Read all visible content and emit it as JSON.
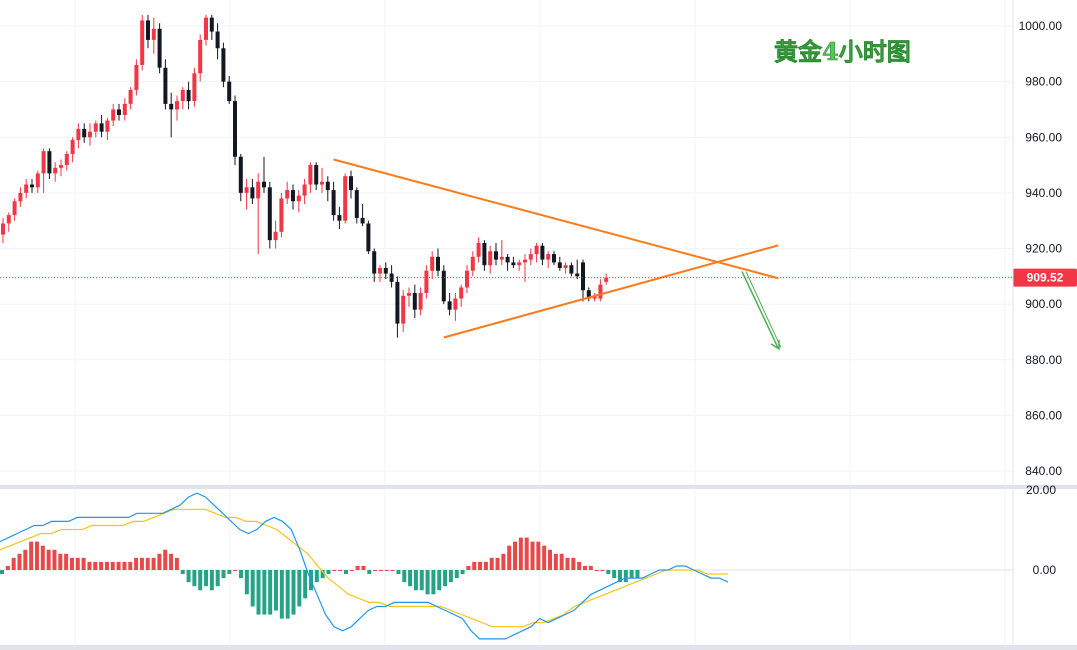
{
  "chart_data": {
    "type": "candlestick",
    "title": "黄金4小时图",
    "colors": {
      "up": "#f23645",
      "down": "#131722",
      "trendline": "#ff7a1a",
      "arrow": "#4caf50",
      "macd_pos": "#e84848",
      "macd_neg": "#26a387",
      "dif": "#2196f3",
      "dea": "#f5c518"
    },
    "price_axis": {
      "ticks": [
        "1000.00",
        "980.00",
        "960.00",
        "940.00",
        "920.00",
        "900.00",
        "880.00",
        "860.00",
        "840.00"
      ],
      "ylim": [
        835,
        1008
      ]
    },
    "current_price": "909.52",
    "macd_axis": {
      "ticks": [
        "20.00",
        "0.00"
      ]
    },
    "candles": [
      {
        "o": 925,
        "h": 931,
        "l": 922,
        "c": 929
      },
      {
        "o": 929,
        "h": 933,
        "l": 926,
        "c": 932
      },
      {
        "o": 932,
        "h": 938,
        "l": 930,
        "c": 937
      },
      {
        "o": 937,
        "h": 942,
        "l": 935,
        "c": 940
      },
      {
        "o": 940,
        "h": 945,
        "l": 938,
        "c": 943
      },
      {
        "o": 943,
        "h": 945,
        "l": 940,
        "c": 942
      },
      {
        "o": 942,
        "h": 948,
        "l": 940,
        "c": 947
      },
      {
        "o": 947,
        "h": 956,
        "l": 940,
        "c": 955
      },
      {
        "o": 955,
        "h": 956,
        "l": 945,
        "c": 947
      },
      {
        "o": 947,
        "h": 951,
        "l": 944,
        "c": 949
      },
      {
        "o": 949,
        "h": 952,
        "l": 946,
        "c": 950
      },
      {
        "o": 950,
        "h": 955,
        "l": 948,
        "c": 954
      },
      {
        "o": 954,
        "h": 960,
        "l": 951,
        "c": 959
      },
      {
        "o": 959,
        "h": 965,
        "l": 956,
        "c": 963
      },
      {
        "o": 963,
        "h": 965,
        "l": 958,
        "c": 960
      },
      {
        "o": 960,
        "h": 965,
        "l": 957,
        "c": 962
      },
      {
        "o": 962,
        "h": 966,
        "l": 960,
        "c": 965
      },
      {
        "o": 965,
        "h": 968,
        "l": 960,
        "c": 962
      },
      {
        "o": 962,
        "h": 967,
        "l": 959,
        "c": 966
      },
      {
        "o": 966,
        "h": 972,
        "l": 964,
        "c": 970
      },
      {
        "o": 970,
        "h": 972,
        "l": 966,
        "c": 968
      },
      {
        "o": 968,
        "h": 974,
        "l": 966,
        "c": 972
      },
      {
        "o": 972,
        "h": 978,
        "l": 970,
        "c": 977
      },
      {
        "o": 977,
        "h": 988,
        "l": 975,
        "c": 986
      },
      {
        "o": 986,
        "h": 1004,
        "l": 984,
        "c": 1002
      },
      {
        "o": 1002,
        "h": 1004,
        "l": 992,
        "c": 995
      },
      {
        "o": 995,
        "h": 1003,
        "l": 990,
        "c": 999
      },
      {
        "o": 999,
        "h": 1001,
        "l": 983,
        "c": 985
      },
      {
        "o": 985,
        "h": 988,
        "l": 970,
        "c": 972
      },
      {
        "o": 972,
        "h": 976,
        "l": 960,
        "c": 970
      },
      {
        "o": 970,
        "h": 975,
        "l": 966,
        "c": 973
      },
      {
        "o": 973,
        "h": 978,
        "l": 970,
        "c": 977
      },
      {
        "o": 977,
        "h": 980,
        "l": 970,
        "c": 973
      },
      {
        "o": 973,
        "h": 985,
        "l": 971,
        "c": 983
      },
      {
        "o": 983,
        "h": 997,
        "l": 980,
        "c": 995
      },
      {
        "o": 995,
        "h": 1004,
        "l": 993,
        "c": 1003
      },
      {
        "o": 1003,
        "h": 1004,
        "l": 995,
        "c": 998
      },
      {
        "o": 998,
        "h": 1001,
        "l": 988,
        "c": 992
      },
      {
        "o": 992,
        "h": 994,
        "l": 978,
        "c": 980
      },
      {
        "o": 980,
        "h": 982,
        "l": 972,
        "c": 973
      },
      {
        "o": 973,
        "h": 975,
        "l": 950,
        "c": 953
      },
      {
        "o": 953,
        "h": 954,
        "l": 937,
        "c": 940
      },
      {
        "o": 940,
        "h": 945,
        "l": 934,
        "c": 942
      },
      {
        "o": 942,
        "h": 945,
        "l": 936,
        "c": 938
      },
      {
        "o": 938,
        "h": 947,
        "l": 918,
        "c": 944
      },
      {
        "o": 944,
        "h": 953,
        "l": 940,
        "c": 942
      },
      {
        "o": 942,
        "h": 944,
        "l": 920,
        "c": 923
      },
      {
        "o": 923,
        "h": 930,
        "l": 920,
        "c": 926
      },
      {
        "o": 926,
        "h": 940,
        "l": 924,
        "c": 938
      },
      {
        "o": 938,
        "h": 944,
        "l": 936,
        "c": 941
      },
      {
        "o": 941,
        "h": 943,
        "l": 934,
        "c": 937
      },
      {
        "o": 937,
        "h": 941,
        "l": 933,
        "c": 939
      },
      {
        "o": 939,
        "h": 945,
        "l": 936,
        "c": 943
      },
      {
        "o": 943,
        "h": 951,
        "l": 940,
        "c": 950
      },
      {
        "o": 950,
        "h": 951,
        "l": 941,
        "c": 943
      },
      {
        "o": 943,
        "h": 949,
        "l": 940,
        "c": 944
      },
      {
        "o": 944,
        "h": 946,
        "l": 937,
        "c": 941
      },
      {
        "o": 941,
        "h": 944,
        "l": 930,
        "c": 932
      },
      {
        "o": 932,
        "h": 935,
        "l": 927,
        "c": 930
      },
      {
        "o": 930,
        "h": 947,
        "l": 929,
        "c": 946
      },
      {
        "o": 946,
        "h": 948,
        "l": 938,
        "c": 941
      },
      {
        "o": 941,
        "h": 942,
        "l": 929,
        "c": 931
      },
      {
        "o": 931,
        "h": 936,
        "l": 928,
        "c": 929
      },
      {
        "o": 929,
        "h": 930,
        "l": 918,
        "c": 919
      },
      {
        "o": 919,
        "h": 920,
        "l": 908,
        "c": 911
      },
      {
        "o": 911,
        "h": 914,
        "l": 908,
        "c": 913
      },
      {
        "o": 913,
        "h": 915,
        "l": 909,
        "c": 911
      },
      {
        "o": 911,
        "h": 914,
        "l": 906,
        "c": 908
      },
      {
        "o": 908,
        "h": 910,
        "l": 888,
        "c": 893
      },
      {
        "o": 893,
        "h": 905,
        "l": 890,
        "c": 903
      },
      {
        "o": 903,
        "h": 906,
        "l": 899,
        "c": 904
      },
      {
        "o": 904,
        "h": 907,
        "l": 895,
        "c": 898
      },
      {
        "o": 898,
        "h": 906,
        "l": 896,
        "c": 904
      },
      {
        "o": 904,
        "h": 914,
        "l": 902,
        "c": 912
      },
      {
        "o": 912,
        "h": 919,
        "l": 909,
        "c": 917
      },
      {
        "o": 917,
        "h": 920,
        "l": 910,
        "c": 912
      },
      {
        "o": 912,
        "h": 914,
        "l": 900,
        "c": 901
      },
      {
        "o": 901,
        "h": 904,
        "l": 896,
        "c": 898
      },
      {
        "o": 898,
        "h": 904,
        "l": 894,
        "c": 902
      },
      {
        "o": 902,
        "h": 907,
        "l": 899,
        "c": 906
      },
      {
        "o": 906,
        "h": 914,
        "l": 904,
        "c": 912
      },
      {
        "o": 912,
        "h": 919,
        "l": 910,
        "c": 917
      },
      {
        "o": 917,
        "h": 924,
        "l": 915,
        "c": 922
      },
      {
        "o": 922,
        "h": 923,
        "l": 912,
        "c": 914
      },
      {
        "o": 914,
        "h": 921,
        "l": 911,
        "c": 919
      },
      {
        "o": 919,
        "h": 922,
        "l": 914,
        "c": 916
      },
      {
        "o": 916,
        "h": 923,
        "l": 914,
        "c": 917
      },
      {
        "o": 917,
        "h": 918,
        "l": 912,
        "c": 915
      },
      {
        "o": 915,
        "h": 917,
        "l": 913,
        "c": 914
      },
      {
        "o": 914,
        "h": 916,
        "l": 912,
        "c": 915
      },
      {
        "o": 915,
        "h": 918,
        "l": 908,
        "c": 916
      },
      {
        "o": 916,
        "h": 920,
        "l": 914,
        "c": 918
      },
      {
        "o": 918,
        "h": 922,
        "l": 915,
        "c": 921
      },
      {
        "o": 921,
        "h": 922,
        "l": 914,
        "c": 916
      },
      {
        "o": 916,
        "h": 919,
        "l": 913,
        "c": 918
      },
      {
        "o": 918,
        "h": 919,
        "l": 914,
        "c": 915
      },
      {
        "o": 915,
        "h": 917,
        "l": 912,
        "c": 913
      },
      {
        "o": 913,
        "h": 915,
        "l": 911,
        "c": 914
      },
      {
        "o": 914,
        "h": 915,
        "l": 910,
        "c": 911
      },
      {
        "o": 911,
        "h": 916,
        "l": 909,
        "c": 910
      },
      {
        "o": 915,
        "h": 916,
        "l": 901,
        "c": 905
      },
      {
        "o": 905,
        "h": 906,
        "l": 901,
        "c": 902
      },
      {
        "o": 902,
        "h": 904,
        "l": 901,
        "c": 903
      },
      {
        "o": 902,
        "h": 909,
        "l": 901,
        "c": 907
      },
      {
        "o": 908,
        "h": 911,
        "l": 907,
        "c": 909.5
      }
    ],
    "trendlines": [
      {
        "name": "descending-resistance",
        "from": {
          "i": 57,
          "p": 952
        },
        "to": {
          "i": 123,
          "p": 910
        }
      },
      {
        "name": "ascending-support",
        "from": {
          "i": 76,
          "p": 888
        },
        "to": {
          "i": 123,
          "p": 919
        }
      }
    ],
    "projection_arrow": {
      "from": {
        "i": 116,
        "p": 911
      },
      "to": {
        "i": 123,
        "p": 885
      }
    },
    "macd_hist": [
      -1,
      1,
      3,
      4,
      5,
      7,
      7,
      6,
      5,
      5,
      4,
      4,
      3,
      3,
      3,
      2,
      2,
      2,
      2,
      2,
      2,
      2,
      2,
      3,
      3,
      3,
      3,
      4,
      5,
      4,
      3,
      -1,
      -3,
      -4,
      -5,
      -4,
      -5,
      -4,
      -2,
      -1,
      0,
      -2,
      -6,
      -9,
      -11,
      -11,
      -11,
      -10,
      -12,
      -12,
      -11,
      -9,
      -7,
      -5,
      -3,
      -2,
      -1,
      0,
      0,
      -1,
      0,
      1,
      1,
      -1,
      0,
      0,
      0,
      0,
      -1,
      -3,
      -4,
      -5,
      -5,
      -6,
      -6,
      -5,
      -4,
      -3,
      -2,
      -1,
      1,
      2,
      2,
      2,
      3,
      3,
      4,
      6,
      7,
      8,
      8,
      7,
      7,
      6,
      5,
      4,
      4,
      3,
      3,
      2,
      1,
      1,
      0,
      0,
      -1,
      -2,
      -3,
      -3,
      -2,
      -2
    ],
    "macd_dif": [
      7,
      8,
      9,
      10,
      11,
      11,
      12,
      12,
      12,
      13,
      13,
      13,
      13,
      13,
      13,
      13,
      14,
      14,
      14,
      14,
      15,
      16,
      18,
      19,
      18,
      16,
      14,
      12,
      10,
      9,
      10,
      12,
      13,
      12,
      10,
      5,
      -1,
      -6,
      -11,
      -14,
      -15,
      -14,
      -12,
      -10,
      -9,
      -9,
      -8,
      -8,
      -8,
      -8,
      -8,
      -9,
      -10,
      -11,
      -12,
      -15,
      -17,
      -17,
      -17,
      -17,
      -16,
      -15,
      -14,
      -12,
      -13,
      -12,
      -11,
      -10,
      -8,
      -6,
      -5,
      -4,
      -3,
      -2,
      -2,
      -2,
      -1,
      0,
      0,
      1,
      1,
      0,
      -1,
      -2,
      -2,
      -3
    ],
    "macd_dea": [
      5,
      6,
      7,
      8,
      9,
      9,
      10,
      10,
      10,
      11,
      11,
      11,
      11,
      12,
      12,
      13,
      14,
      15,
      15,
      15,
      15,
      14,
      13,
      13,
      12,
      12,
      11,
      10,
      8,
      6,
      4,
      1,
      -2,
      -4,
      -6,
      -7,
      -8,
      -8,
      -9,
      -9,
      -9,
      -9,
      -9,
      -9,
      -10,
      -11,
      -12,
      -13,
      -14,
      -14,
      -14,
      -14,
      -13,
      -13,
      -12,
      -11,
      -9,
      -8,
      -7,
      -6,
      -5,
      -4,
      -3,
      -2,
      -1,
      0,
      0,
      0,
      0,
      -1,
      -1,
      -1
    ]
  }
}
